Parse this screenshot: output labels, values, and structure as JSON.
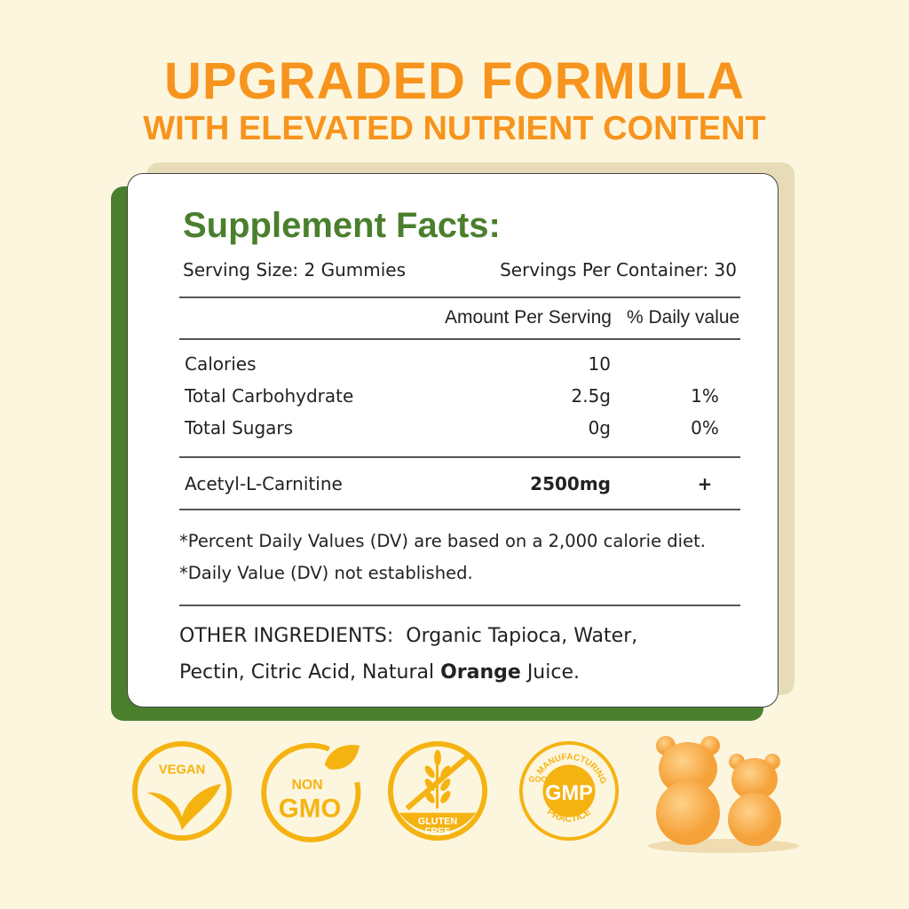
{
  "header": {
    "title": "UPGRADED FORMULA",
    "subtitle": "WITH ELEVATED NUTRIENT CONTENT"
  },
  "facts": {
    "heading": "Supplement Facts:",
    "serving_size": "Serving Size: 2 Gummies",
    "servings_per_container": "Servings Per Container: 30",
    "col_amount": "Amount Per Serving",
    "col_dv": "% Daily value",
    "rows": [
      {
        "name": "Calories",
        "amount": "10",
        "dv": ""
      },
      {
        "name": "Total Carbohydrate",
        "amount": "2.5g",
        "dv": "1%"
      },
      {
        "name": "Total Sugars",
        "amount": "0g",
        "dv": "0%"
      }
    ],
    "active": {
      "name": "Acetyl-L-Carnitine",
      "amount": "2500mg",
      "dv": "+"
    },
    "note1": "*Percent Daily Values (DV) are based on a 2,000 calorie diet.",
    "note2": "*Daily Value (DV) not established.",
    "other_label": "OTHER INGREDIENTS:",
    "other_line1": "Organic Tapioca, Water,",
    "other_line2a": "Pectin, Citric Acid, Natural ",
    "other_bold": "Orange",
    "other_line2b": " Juice."
  },
  "badges": {
    "vegan": "VEGAN",
    "non": "NON",
    "gmo": "GMO",
    "gluten": "GLUTEN",
    "free": "FREE",
    "gmp": "GMP",
    "gmp_top": "MANUFACTURING",
    "gmp_left": "GOOD",
    "gmp_bottom": "PRACTICE"
  },
  "colors": {
    "orange": "#f7941d",
    "green": "#4a7f2e",
    "badge": "#f5b312"
  }
}
